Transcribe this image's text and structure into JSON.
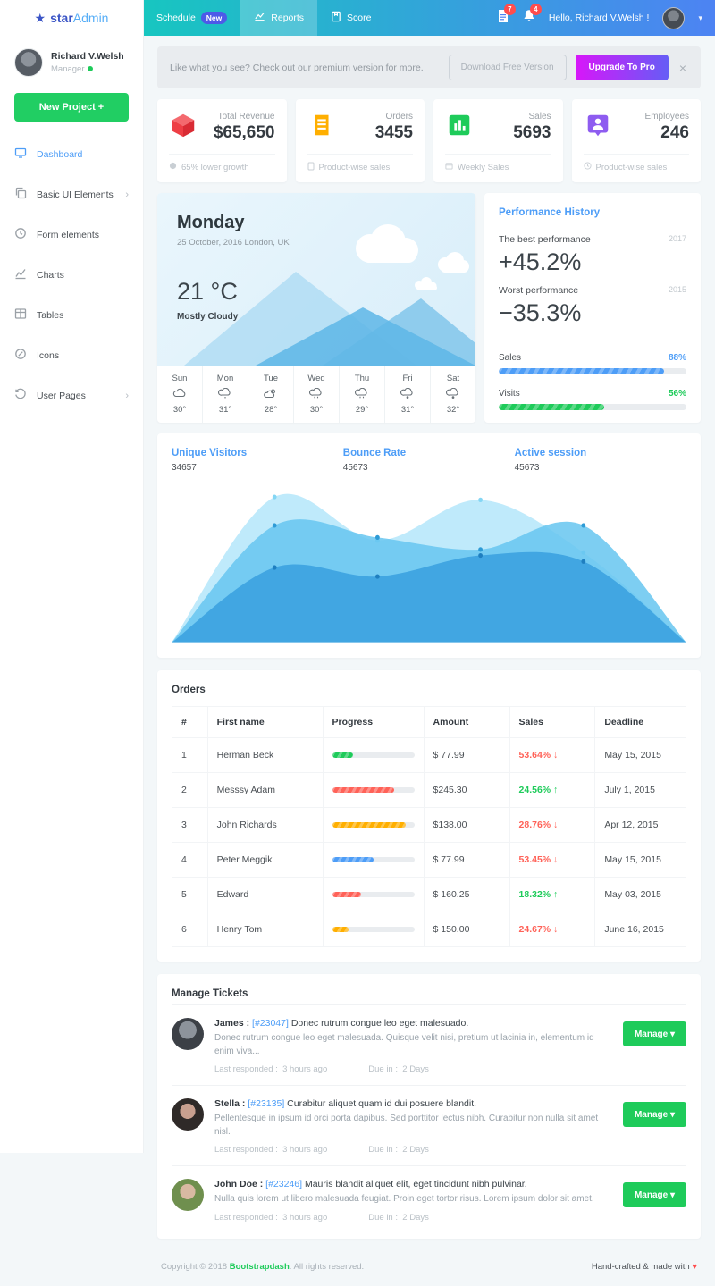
{
  "brand": {
    "star": "★",
    "name_prefix": "star",
    "name_suffix": "Admin"
  },
  "topnav": {
    "schedule_label": "Schedule",
    "schedule_badge": "New",
    "reports_label": "Reports",
    "score_label": "Score",
    "doc_badge": "7",
    "bell_badge": "4",
    "greeting": "Hello, Richard V.Welsh !",
    "caret": "▾"
  },
  "sidebar": {
    "user": {
      "name": "Richard V.Welsh",
      "role": "Manager"
    },
    "new_project_label": "New Project +",
    "items": [
      {
        "label": "Dashboard",
        "icon": "screen-icon",
        "chevron": ""
      },
      {
        "label": "Basic UI Elements",
        "icon": "copy-icon",
        "chevron": "›"
      },
      {
        "label": "Form elements",
        "icon": "form-icon",
        "chevron": ""
      },
      {
        "label": "Charts",
        "icon": "chart-line-icon",
        "chevron": ""
      },
      {
        "label": "Tables",
        "icon": "table-icon",
        "chevron": ""
      },
      {
        "label": "Icons",
        "icon": "pen-circle-icon",
        "chevron": ""
      },
      {
        "label": "User Pages",
        "icon": "history-icon",
        "chevron": "›"
      }
    ]
  },
  "banner": {
    "text": "Like what you see? Check out our premium version for more.",
    "download_label": "Download Free Version",
    "upgrade_label": "Upgrade To Pro",
    "close": "×"
  },
  "stats": [
    {
      "title": "Total Revenue",
      "value": "$65,650",
      "footer": "65% lower growth",
      "icon": "cube-icon",
      "color": "#f0484e"
    },
    {
      "title": "Orders",
      "value": "3455",
      "footer": "Product-wise sales",
      "icon": "receipt-icon",
      "color": "#ffaf00"
    },
    {
      "title": "Sales",
      "value": "5693",
      "footer": "Weekly Sales",
      "icon": "bar-chart-icon",
      "color": "#1ecb5a"
    },
    {
      "title": "Employees",
      "value": "246",
      "footer": "Product-wise sales",
      "icon": "person-icon",
      "color": "#8e5cf0"
    }
  ],
  "weather": {
    "day": "Monday",
    "date": "25 October, 2016 London, UK",
    "temp": "21 °C",
    "condition": "Mostly Cloudy",
    "week": [
      {
        "day": "Sun",
        "temp": "30°"
      },
      {
        "day": "Mon",
        "temp": "31°"
      },
      {
        "day": "Tue",
        "temp": "28°"
      },
      {
        "day": "Wed",
        "temp": "30°"
      },
      {
        "day": "Thu",
        "temp": "29°"
      },
      {
        "day": "Fri",
        "temp": "31°"
      },
      {
        "day": "Sat",
        "temp": "32°"
      }
    ]
  },
  "performance": {
    "title": "Performance History",
    "best_label": "The best performance",
    "best_value": "+45.2%",
    "best_year": "2017",
    "worst_label": "Worst performance",
    "worst_value": "−35.3%",
    "worst_year": "2015",
    "bars": [
      {
        "label": "Sales",
        "value": "88%",
        "pct": 88,
        "color": "#4d9df7",
        "value_color": "#4d9df7"
      },
      {
        "label": "Visits",
        "value": "56%",
        "pct": 56,
        "color": "#1ecb5a",
        "value_color": "#1ecb5a"
      }
    ]
  },
  "visitors": {
    "headers": [
      {
        "label": "Unique Visitors",
        "value": "34657"
      },
      {
        "label": "Bounce Rate",
        "value": "45673"
      },
      {
        "label": "Active session",
        "value": "45673"
      }
    ]
  },
  "chart_data": {
    "type": "area",
    "title": "",
    "xlabel": "",
    "ylabel": "",
    "x": [
      0,
      1,
      2,
      3,
      4,
      5
    ],
    "ylim": [
      0,
      100
    ],
    "grid": false,
    "legend": "none",
    "markers": true,
    "series": [
      {
        "name": "Unique Visitors",
        "color": "#bfeafb",
        "fill_opacity": 1,
        "marker_color": "#84d6f4",
        "values": [
          0,
          97,
          68,
          95,
          60,
          0
        ]
      },
      {
        "name": "Bounce Rate",
        "color": "#66c6f0",
        "fill_opacity": 0.85,
        "marker_color": "#2e9bd6",
        "values": [
          0,
          78,
          70,
          62,
          78,
          0
        ]
      },
      {
        "name": "Active session",
        "color": "#3ca2e0",
        "fill_opacity": 0.9,
        "marker_color": "#1f7fc0",
        "values": [
          0,
          50,
          44,
          58,
          54,
          0
        ]
      }
    ]
  },
  "orders": {
    "title": "Orders",
    "columns": [
      "#",
      "First name",
      "Progress",
      "Amount",
      "Sales",
      "Deadline"
    ],
    "rows": [
      {
        "id": "1",
        "name": "Herman Beck",
        "progress_pct": 26,
        "progress_color": "#1ecb5a",
        "amount": "$ 77.99",
        "sales": "53.64% ↓",
        "sales_color": "#ff6258",
        "deadline": "May 15, 2015"
      },
      {
        "id": "2",
        "name": "Messsy Adam",
        "progress_pct": 75,
        "progress_color": "#ff6258",
        "amount": "$245.30",
        "sales": "24.56% ↑",
        "sales_color": "#1ecb5a",
        "deadline": "July 1, 2015"
      },
      {
        "id": "3",
        "name": "John Richards",
        "progress_pct": 90,
        "progress_color": "#ffaf00",
        "amount": "$138.00",
        "sales": "28.76% ↓",
        "sales_color": "#ff6258",
        "deadline": "Apr 12, 2015"
      },
      {
        "id": "4",
        "name": "Peter Meggik",
        "progress_pct": 50,
        "progress_color": "#4d9df7",
        "amount": "$ 77.99",
        "sales": "53.45% ↓",
        "sales_color": "#ff6258",
        "deadline": "May 15, 2015"
      },
      {
        "id": "5",
        "name": "Edward",
        "progress_pct": 35,
        "progress_color": "#ff6258",
        "amount": "$ 160.25",
        "sales": "18.32% ↑",
        "sales_color": "#1ecb5a",
        "deadline": "May 03, 2015"
      },
      {
        "id": "6",
        "name": "Henry Tom",
        "progress_pct": 20,
        "progress_color": "#ffaf00",
        "amount": "$ 150.00",
        "sales": "24.67% ↓",
        "sales_color": "#ff6258",
        "deadline": "June 16, 2015"
      }
    ]
  },
  "tickets": {
    "title": "Manage Tickets",
    "manage_label": "Manage ▾",
    "items": [
      {
        "name": "James :",
        "id": "[#23047]",
        "subject": "Donec rutrum congue leo eget malesuado.",
        "desc": "Donec rutrum congue leo eget malesuada. Quisque velit nisi, pretium ut lacinia in, elementum id enim viva...",
        "responded_label": "Last responded :",
        "responded": "3 hours ago",
        "due_label": "Due in :",
        "due": "2 Days"
      },
      {
        "name": "Stella :",
        "id": "[#23135]",
        "subject": "Curabitur aliquet quam id dui posuere blandit.",
        "desc": "Pellentesque in ipsum id orci porta dapibus. Sed porttitor lectus nibh. Curabitur non nulla sit amet nisl.",
        "responded_label": "Last responded :",
        "responded": "3 hours ago",
        "due_label": "Due in :",
        "due": "2 Days"
      },
      {
        "name": "John Doe :",
        "id": "[#23246]",
        "subject": "Mauris blandit aliquet elit, eget tincidunt nibh pulvinar.",
        "desc": "Nulla quis lorem ut libero malesuada feugiat. Proin eget tortor risus. Lorem ipsum dolor sit amet.",
        "responded_label": "Last responded :",
        "responded": "3 hours ago",
        "due_label": "Due in :",
        "due": "2 Days"
      }
    ]
  },
  "footer": {
    "copyright_prefix": "Copyright © 2018 ",
    "brand": "Bootstrapdash",
    "copyright_suffix": ". All rights reserved.",
    "right_text": "Hand-crafted & made with ",
    "heart": "♥"
  }
}
